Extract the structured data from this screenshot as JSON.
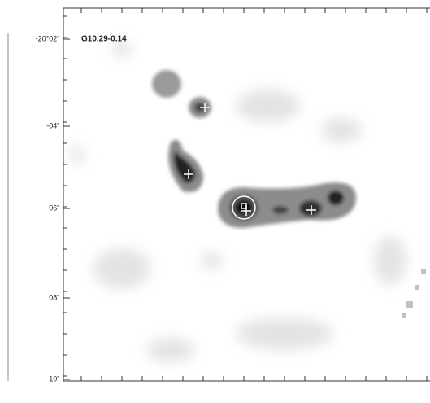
{
  "panel": {
    "label": "G10.29-0.14",
    "yticks": [
      "-20°02'",
      "-04'",
      "06'",
      "08'",
      "10'"
    ]
  }
}
